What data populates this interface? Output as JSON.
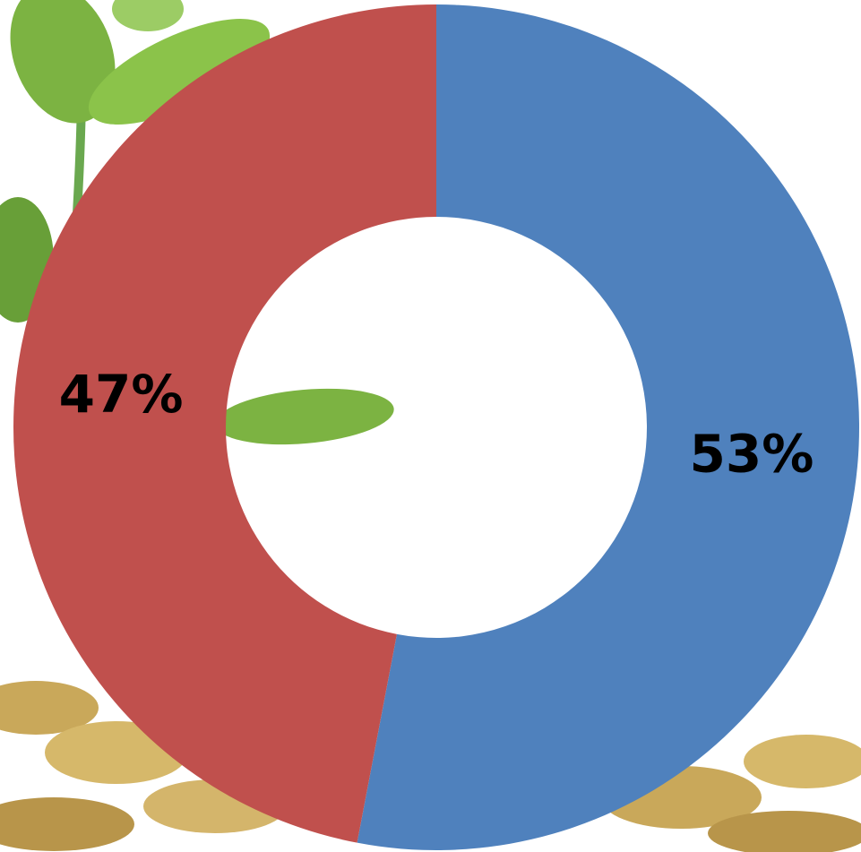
{
  "chart_data": {
    "type": "pie",
    "donut": true,
    "values": [
      53,
      47
    ],
    "value_labels": [
      "53%",
      "47%"
    ],
    "colors": [
      "#4f81bd",
      "#c0504d"
    ]
  }
}
